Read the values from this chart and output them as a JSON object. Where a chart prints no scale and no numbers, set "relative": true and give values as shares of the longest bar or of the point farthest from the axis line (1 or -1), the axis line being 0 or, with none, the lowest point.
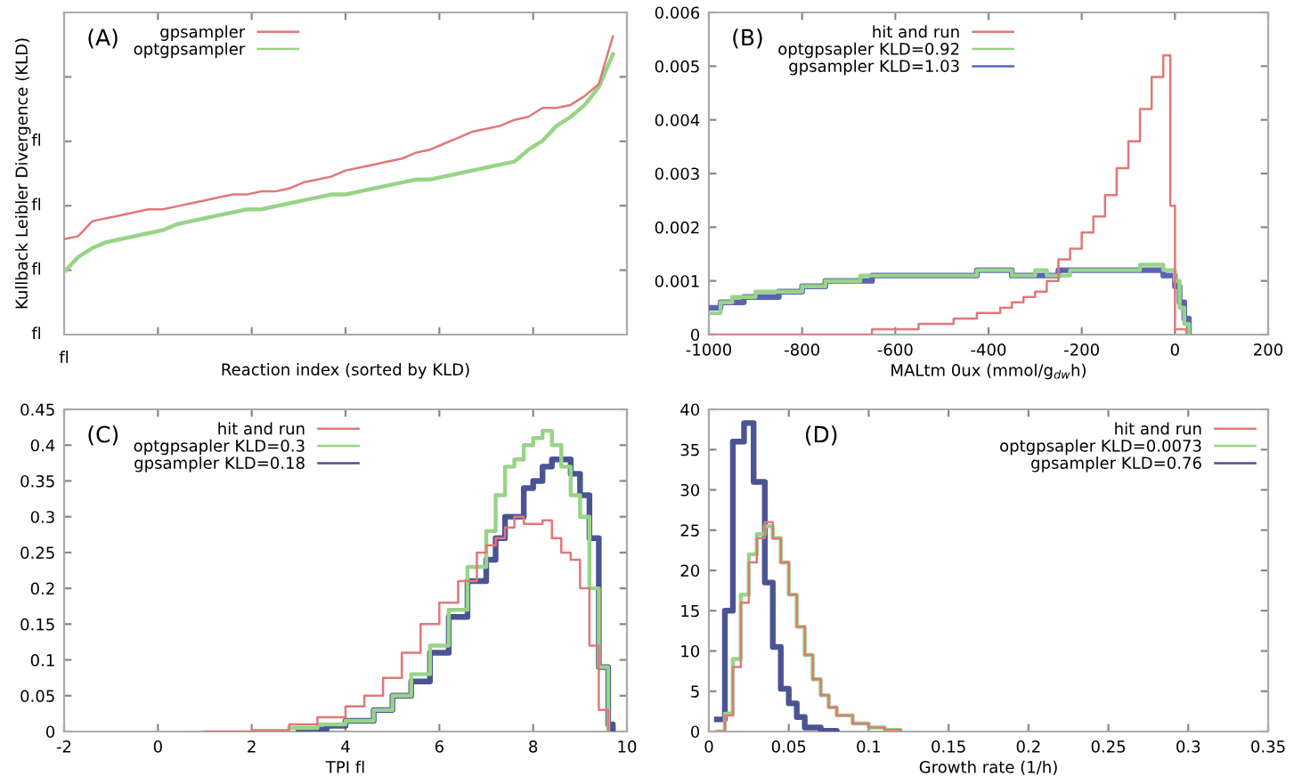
{
  "chart_data": [
    {
      "type": "line",
      "relative": true,
      "xlabel": "Reaction index (sorted by KLD)",
      "ylabel": "Kullback Leibler Divergence (KLD)",
      "annotations": [
        "(A)",
        "fl",
        "fl",
        "fl",
        "fl",
        "fl"
      ],
      "legend": "top left",
      "categories": [
        null,
        null,
        null,
        null,
        null,
        null,
        null,
        null,
        null,
        null,
        null,
        null,
        null,
        null,
        null,
        null,
        null,
        null,
        null,
        null,
        null,
        null,
        null,
        null,
        null,
        null,
        null,
        null,
        null,
        null,
        null,
        null,
        null,
        null,
        null,
        null,
        null,
        null,
        null,
        null
      ],
      "series": [
        {
          "name": "gpsampler",
          "color": "#e07878",
          "values": [
            0.32,
            0.33,
            0.38,
            0.39,
            0.4,
            0.41,
            0.42,
            0.42,
            0.43,
            0.44,
            0.45,
            0.46,
            0.47,
            0.47,
            0.48,
            0.48,
            0.49,
            0.51,
            0.52,
            0.53,
            0.55,
            0.56,
            0.57,
            0.58,
            0.59,
            0.61,
            0.62,
            0.64,
            0.66,
            0.68,
            0.69,
            0.7,
            0.72,
            0.73,
            0.76,
            0.76,
            0.77,
            0.8,
            0.84,
            1
          ]
        },
        {
          "name": "optgpsampler",
          "color": "#98d488",
          "values": [
            0.21,
            0.26,
            0.29,
            0.31,
            0.32,
            0.33,
            0.34,
            0.35,
            0.37,
            0.38,
            0.39,
            0.4,
            0.41,
            0.42,
            0.42,
            0.43,
            0.44,
            0.45,
            0.46,
            0.47,
            0.47,
            0.48,
            0.49,
            0.5,
            0.51,
            0.52,
            0.52,
            0.53,
            0.54,
            0.55,
            0.56,
            0.57,
            0.58,
            0.62,
            0.65,
            0.7,
            0.73,
            0.77,
            0.83,
            0.94
          ]
        }
      ]
    },
    {
      "type": "step",
      "xlabel": "MALtm 0ux (mmol/g$_{dw}$h)",
      "annotations": [
        "(B)"
      ],
      "legend": "top left",
      "xlim": [
        -1000,
        200
      ],
      "xticks": [
        -1000,
        -800,
        -600,
        -400,
        -200,
        0,
        200
      ],
      "ylim": [
        0,
        0.006
      ],
      "yticks": [
        0,
        0.001,
        0.002,
        0.003,
        0.004,
        0.005,
        0.006
      ],
      "series": [
        {
          "name": "hit and run",
          "color": "#e07878",
          "x": [
            -1000,
            -650,
            -550,
            -475,
            -425,
            -375,
            -350,
            -325,
            -300,
            -275,
            -250,
            -225,
            -200,
            -175,
            -150,
            -125,
            -100,
            -75,
            -50,
            -25,
            -10,
            0,
            25
          ],
          "values": [
            0,
            0.0001,
            0.0002,
            0.0003,
            0.0004,
            0.0005,
            0.0006,
            0.0007,
            0.0008,
            0.001,
            0.0014,
            0.0016,
            0.0019,
            0.0022,
            0.0026,
            0.0031,
            0.0036,
            0.0042,
            0.0048,
            0.0052,
            0.0024,
            0.0001,
            0
          ]
        },
        {
          "name": "optgpsapler KLD=0.92",
          "color": "#98d488",
          "x": [
            -1000,
            -975,
            -950,
            -900,
            -800,
            -750,
            -675,
            -425,
            -350,
            -300,
            -275,
            -225,
            -75,
            -25,
            0,
            10,
            20,
            30
          ],
          "values": [
            0.0004,
            0.0006,
            0.0007,
            0.0008,
            0.0009,
            0.001,
            0.0011,
            0.0012,
            0.0011,
            0.0012,
            0.0011,
            0.0012,
            0.0013,
            0.0012,
            0.001,
            0.0005,
            0.0002,
            0
          ]
        },
        {
          "name": "gpsampler KLD=1.03",
          "color": "#5a64b4",
          "x": [
            -1000,
            -975,
            -925,
            -850,
            -800,
            -750,
            -650,
            -425,
            -350,
            -250,
            -25,
            0,
            10,
            20,
            30
          ],
          "values": [
            0.0005,
            0.0006,
            0.0007,
            0.0008,
            0.0009,
            0.001,
            0.0011,
            0.0012,
            0.0011,
            0.0012,
            0.0011,
            0.0009,
            0.0006,
            0.0003,
            0
          ]
        }
      ]
    },
    {
      "type": "step",
      "xlabel": "TPI fl",
      "annotations": [
        "(C)"
      ],
      "legend": "top left",
      "xlim": [
        -2,
        10
      ],
      "xticks": [
        -2,
        0,
        2,
        4,
        6,
        8,
        10
      ],
      "ylim": [
        0,
        0.45
      ],
      "yticks": [
        0,
        0.05,
        0.1,
        0.15,
        0.2,
        0.25,
        0.3,
        0.35,
        0.4,
        0.45
      ],
      "series": [
        {
          "name": "hit and run",
          "color": "#e07878",
          "x": [
            1,
            2,
            2.8,
            3.4,
            4,
            4.4,
            4.8,
            5.2,
            5.6,
            6,
            6.4,
            6.8,
            7,
            7.2,
            7.4,
            7.6,
            7.8,
            8,
            8.2,
            8.4,
            8.6,
            8.8,
            9,
            9.2,
            9.4,
            9.6
          ],
          "values": [
            0,
            0.002,
            0.01,
            0.02,
            0.035,
            0.05,
            0.075,
            0.11,
            0.15,
            0.18,
            0.21,
            0.25,
            0.26,
            0.27,
            0.285,
            0.3,
            0.29,
            0.29,
            0.295,
            0.27,
            0.25,
            0.24,
            0.2,
            0.12,
            0.03,
            0
          ]
        },
        {
          "name": "optgpsapler KLD=0.3",
          "color": "#98d488",
          "x": [
            2.8,
            3.4,
            4,
            4.6,
            5,
            5.4,
            5.8,
            6.2,
            6.6,
            7,
            7.2,
            7.4,
            7.6,
            7.8,
            8,
            8.2,
            8.4,
            8.6,
            8.8,
            9,
            9.2,
            9.4,
            9.6
          ],
          "values": [
            0.005,
            0.01,
            0.015,
            0.03,
            0.05,
            0.08,
            0.12,
            0.17,
            0.23,
            0.28,
            0.33,
            0.37,
            0.38,
            0.4,
            0.41,
            0.42,
            0.4,
            0.37,
            0.33,
            0.3,
            0.2,
            0.09,
            0
          ]
        },
        {
          "name": "gpsampler KLD=0.18",
          "color": "#4a5494",
          "x": [
            3,
            3.6,
            4,
            4.6,
            5,
            5.4,
            5.8,
            6.2,
            6.6,
            7,
            7.2,
            7.4,
            7.6,
            7.8,
            8,
            8.2,
            8.4,
            8.6,
            8.8,
            9,
            9.2,
            9.4,
            9.6,
            9.7
          ],
          "values": [
            0.003,
            0.008,
            0.015,
            0.03,
            0.05,
            0.07,
            0.11,
            0.16,
            0.21,
            0.24,
            0.27,
            0.3,
            0.3,
            0.34,
            0.35,
            0.37,
            0.38,
            0.38,
            0.36,
            0.33,
            0.27,
            0.09,
            0.01,
            0
          ]
        }
      ]
    },
    {
      "type": "step",
      "xlabel": "Growth rate (1/h)",
      "annotations": [
        "(D)"
      ],
      "legend": "top right",
      "xlim": [
        0,
        0.35
      ],
      "xticks": [
        0,
        0.05,
        0.1,
        0.15,
        0.2,
        0.25,
        0.3,
        0.35
      ],
      "ylim": [
        0,
        40
      ],
      "yticks": [
        0,
        5,
        10,
        15,
        20,
        25,
        30,
        35,
        40
      ],
      "series": [
        {
          "name": "hit and run",
          "color": "#e07878",
          "x": [
            0.005,
            0.01,
            0.015,
            0.02,
            0.025,
            0.03,
            0.035,
            0.04,
            0.045,
            0.05,
            0.055,
            0.06,
            0.065,
            0.07,
            0.075,
            0.08,
            0.09,
            0.1,
            0.11,
            0.12
          ],
          "values": [
            0,
            2,
            8,
            16,
            21,
            24,
            26,
            24,
            21,
            17,
            13,
            9.5,
            6.5,
            4.5,
            3,
            2,
            1,
            0.5,
            0.2,
            0
          ]
        },
        {
          "name": "optgpsapler KLD=0.0073",
          "color": "#98d488",
          "x": [
            0.005,
            0.01,
            0.015,
            0.02,
            0.025,
            0.03,
            0.035,
            0.04,
            0.045,
            0.05,
            0.055,
            0.06,
            0.065,
            0.07,
            0.075,
            0.08,
            0.09,
            0.1,
            0.11,
            0.12
          ],
          "values": [
            0,
            2.2,
            9,
            17,
            22,
            24.5,
            25.5,
            24,
            21,
            17,
            13,
            9.5,
            6.5,
            4.5,
            3,
            2,
            1,
            0.5,
            0.2,
            0
          ]
        },
        {
          "name": "gpsampler KLD=0.76",
          "color": "#4a5494",
          "x": [
            0.005,
            0.01,
            0.015,
            0.022,
            0.028,
            0.035,
            0.04,
            0.045,
            0.05,
            0.055,
            0.06,
            0.07,
            0.08
          ],
          "values": [
            1.5,
            15,
            36,
            38.3,
            31,
            18.5,
            10.5,
            5.3,
            3.5,
            1.8,
            0.5,
            0.1,
            0
          ]
        }
      ]
    }
  ]
}
